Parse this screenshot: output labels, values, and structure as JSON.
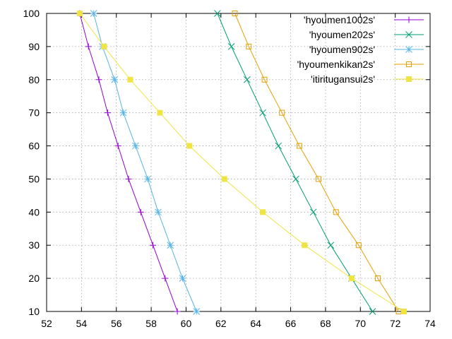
{
  "chart_data": {
    "type": "line",
    "xlim": [
      52,
      74
    ],
    "ylim": [
      10,
      100
    ],
    "x_ticks": [
      52,
      54,
      56,
      58,
      60,
      62,
      64,
      66,
      68,
      70,
      72,
      74
    ],
    "y_ticks": [
      10,
      20,
      30,
      40,
      50,
      60,
      70,
      80,
      90,
      100
    ],
    "grid": true,
    "legend_position": "top-right",
    "series": [
      {
        "name": "'hyoumen1002s'",
        "color": "#9400d3",
        "marker": "plus",
        "points": [
          [
            53.9,
            100
          ],
          [
            54.4,
            90
          ],
          [
            55.0,
            80
          ],
          [
            55.5,
            70
          ],
          [
            56.1,
            60
          ],
          [
            56.7,
            50
          ],
          [
            57.4,
            40
          ],
          [
            58.1,
            30
          ],
          [
            58.8,
            20
          ],
          [
            59.5,
            10
          ]
        ]
      },
      {
        "name": "'hyoumen202s'",
        "color": "#009e73",
        "marker": "cross",
        "points": [
          [
            61.8,
            100
          ],
          [
            62.6,
            90
          ],
          [
            63.5,
            80
          ],
          [
            64.4,
            70
          ],
          [
            65.3,
            60
          ],
          [
            66.3,
            50
          ],
          [
            67.3,
            40
          ],
          [
            68.3,
            30
          ],
          [
            69.5,
            20
          ],
          [
            70.7,
            10
          ]
        ]
      },
      {
        "name": "'hyoumen902s'",
        "color": "#56b4e9",
        "marker": "star",
        "points": [
          [
            54.7,
            100
          ],
          [
            55.2,
            90
          ],
          [
            55.9,
            80
          ],
          [
            56.4,
            70
          ],
          [
            57.1,
            60
          ],
          [
            57.8,
            50
          ],
          [
            58.4,
            40
          ],
          [
            59.1,
            30
          ],
          [
            59.8,
            20
          ],
          [
            60.6,
            10
          ]
        ]
      },
      {
        "name": "'hyoumenkikan2s'",
        "color": "#e69f00",
        "marker": "open-square",
        "points": [
          [
            62.8,
            100
          ],
          [
            63.6,
            90
          ],
          [
            64.5,
            80
          ],
          [
            65.5,
            70
          ],
          [
            66.5,
            60
          ],
          [
            67.6,
            50
          ],
          [
            68.6,
            40
          ],
          [
            69.9,
            30
          ],
          [
            71.0,
            20
          ],
          [
            72.2,
            10
          ]
        ]
      },
      {
        "name": "'itiritugansui2s'",
        "color": "#f0e442",
        "marker": "filled-square",
        "points": [
          [
            53.9,
            100
          ],
          [
            55.3,
            90
          ],
          [
            56.8,
            80
          ],
          [
            58.5,
            70
          ],
          [
            60.2,
            60
          ],
          [
            62.2,
            50
          ],
          [
            64.4,
            40
          ],
          [
            66.8,
            30
          ],
          [
            69.5,
            20
          ],
          [
            72.5,
            10
          ]
        ]
      }
    ]
  }
}
